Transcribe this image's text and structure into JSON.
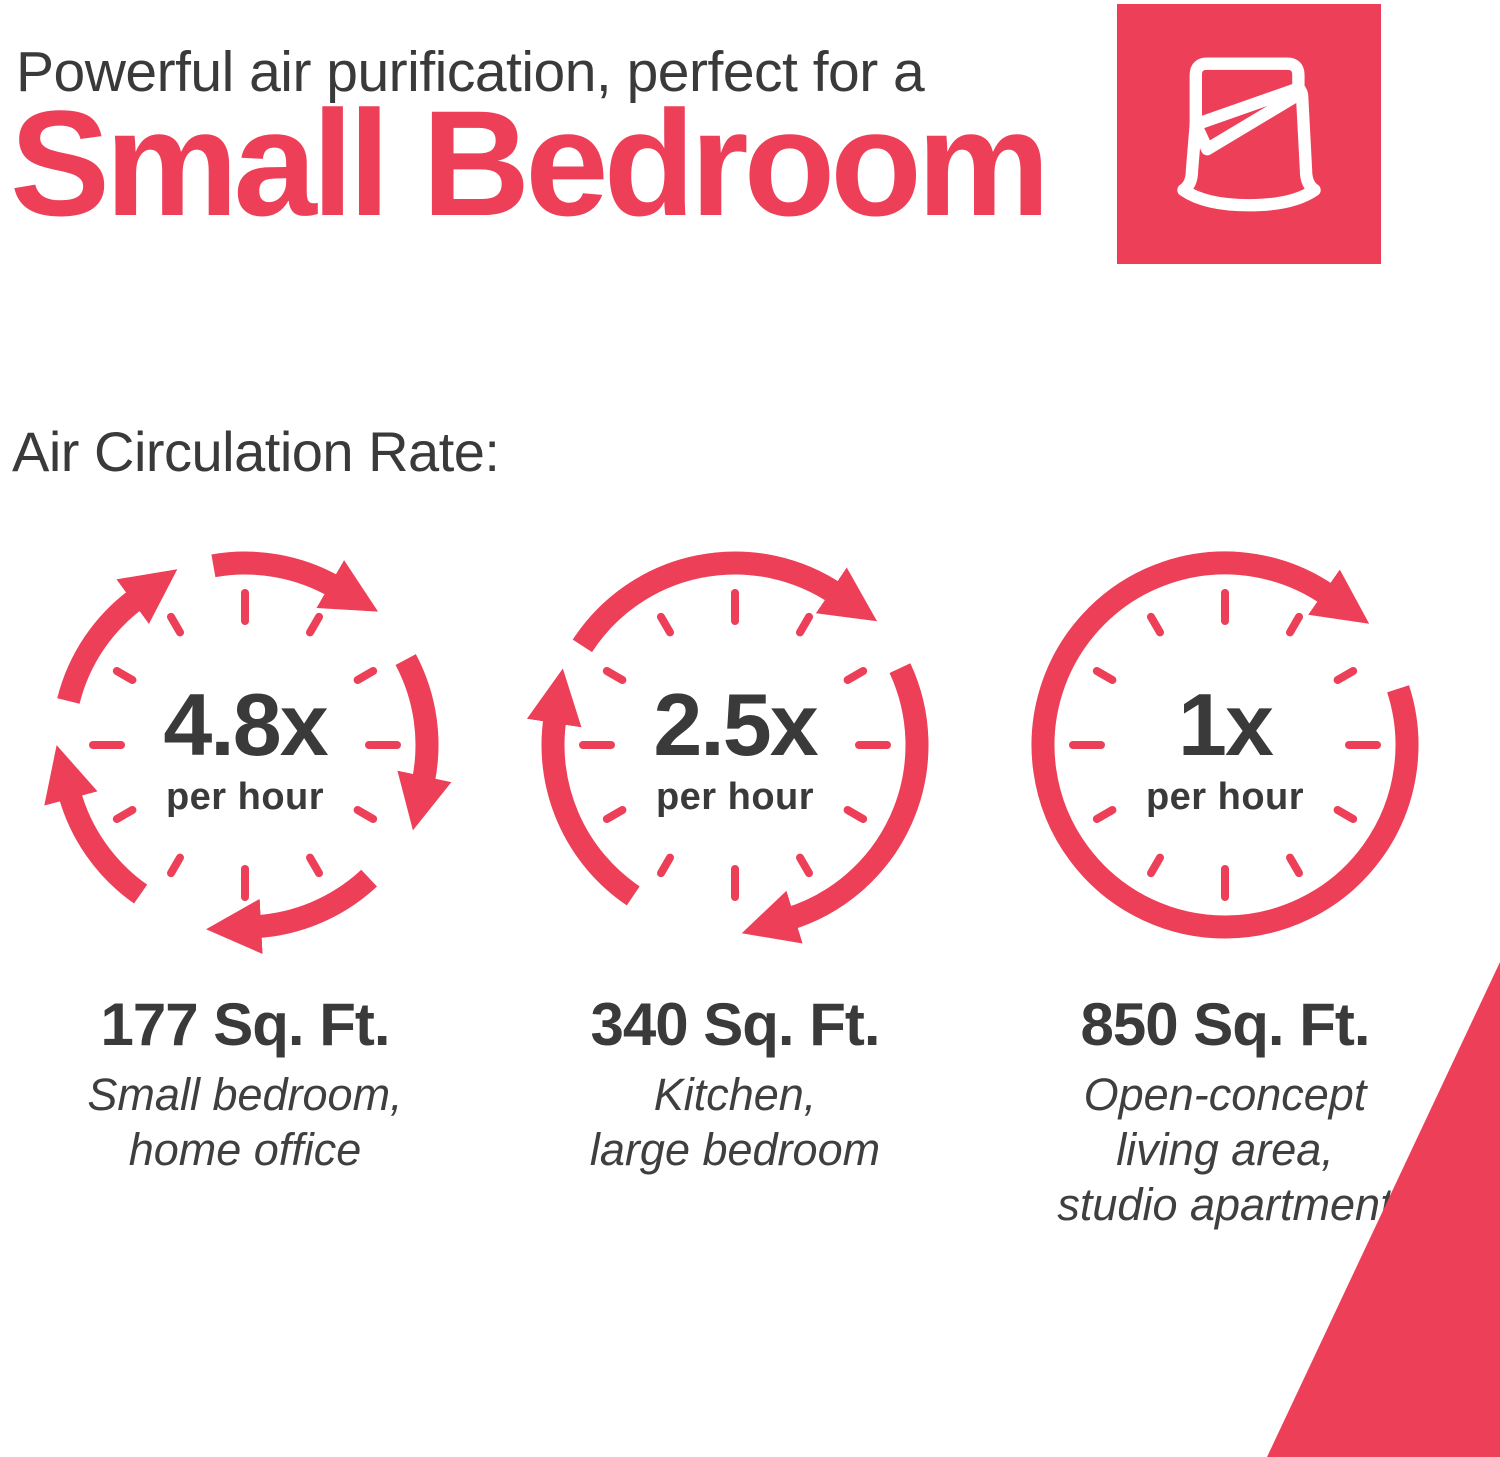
{
  "colors": {
    "accent": "#EE3F59",
    "ink": "#3a3a3a",
    "background": "#FFFFFF"
  },
  "header": {
    "intro": "Powerful air purification, perfect for a",
    "title": "Small Bedroom",
    "icon": "bed-duvet-icon"
  },
  "section_label": "Air Circulation Rate:",
  "clocks": [
    {
      "rate": "4.8x",
      "rate_unit": "per hour",
      "coverage": "177 Sq. Ft.",
      "rooms": [
        "Small bedroom,",
        "home office"
      ],
      "arrow_count": 5,
      "arrows": [
        {
          "start": 284,
          "end": 324
        },
        {
          "start": 350,
          "end": 30
        },
        {
          "start": 62,
          "end": 102
        },
        {
          "start": 137,
          "end": 177
        },
        {
          "start": 215,
          "end": 255
        }
      ]
    },
    {
      "rate": "2.5x",
      "rate_unit": "per hour",
      "coverage": "340 Sq. Ft.",
      "rooms": [
        "Kitchen,",
        "large bedroom"
      ],
      "arrow_count": 3,
      "arrows": [
        {
          "start": 303,
          "end": 34
        },
        {
          "start": 65,
          "end": 163
        },
        {
          "start": 214,
          "end": 279
        }
      ]
    },
    {
      "rate": "1x",
      "rate_unit": "per hour",
      "coverage": "850 Sq. Ft.",
      "rooms": [
        "Open-concept",
        "living area,",
        "studio apartment"
      ],
      "arrow_count": 1,
      "arrows": [
        {
          "start": 72,
          "end": 395
        }
      ]
    }
  ],
  "decorations": {
    "corner_triangle": "bottom-right"
  }
}
